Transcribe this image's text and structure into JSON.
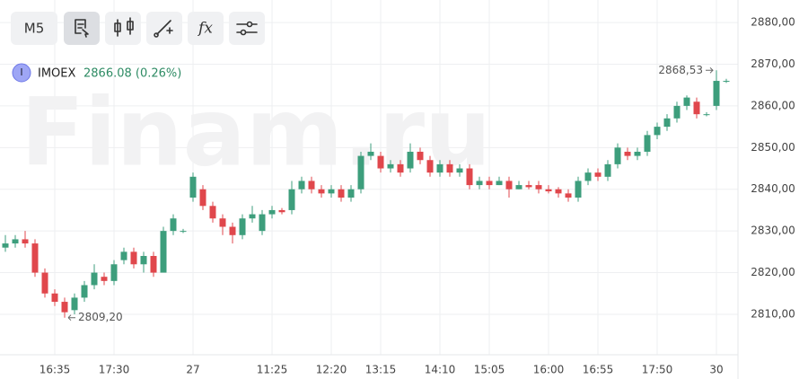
{
  "toolbar": {
    "timeframe": "M5"
  },
  "watermark": "Finam.ru",
  "legend": {
    "badge": "I",
    "ticker": "IMOEX",
    "quote": "2866.08 (0.26%)"
  },
  "chart_data": {
    "type": "candlestick",
    "categories": [
      null,
      null,
      null,
      null,
      null,
      "16:35",
      null,
      null,
      null,
      null,
      null,
      "17:30",
      null,
      null,
      null,
      null,
      null,
      null,
      null,
      "27",
      null,
      null,
      null,
      null,
      null,
      null,
      null,
      "11:25",
      null,
      null,
      null,
      null,
      null,
      "12:20",
      null,
      null,
      null,
      null,
      "13:15",
      null,
      null,
      null,
      null,
      null,
      "14:10",
      null,
      null,
      null,
      null,
      "15:05",
      null,
      null,
      null,
      null,
      null,
      "16:00",
      null,
      null,
      null,
      null,
      "16:55",
      null,
      null,
      null,
      null,
      null,
      "17:50",
      null,
      null,
      null,
      null,
      null,
      "30",
      null
    ],
    "open": [
      2826,
      2827,
      2828,
      2827,
      2820,
      2815,
      2813,
      2811,
      2814,
      2817,
      2819,
      2818,
      2823,
      2825,
      2822,
      2824,
      2820,
      2830,
      2830,
      2838,
      2840,
      2836,
      2833,
      2831,
      2829,
      2833,
      2830,
      2834,
      2835,
      2835,
      2840,
      2842,
      2840,
      2839,
      2840,
      2838,
      2840,
      2848,
      2848,
      2845,
      2846,
      2845,
      2849,
      2847,
      2844,
      2846,
      2844,
      2845,
      2841,
      2842,
      2841,
      2842,
      2840,
      2841,
      2841,
      2840,
      2840,
      2839,
      2838,
      2842,
      2844,
      2843,
      2846,
      2849,
      2848,
      2849,
      2853,
      2855,
      2857,
      2860,
      2861,
      2858,
      2860,
      2866
    ],
    "high": [
      2829,
      2829,
      2830,
      2828,
      2821,
      2816,
      2814,
      2815,
      2818,
      2822,
      2820,
      2823,
      2826,
      2826,
      2825,
      2825,
      2831,
      2834,
      2830.5,
      2844,
      2841,
      2837,
      2834,
      2832,
      2834,
      2836,
      2835,
      2836,
      2835.5,
      2842,
      2843,
      2843,
      2841,
      2841,
      2841,
      2841,
      2849,
      2851,
      2849,
      2847,
      2847,
      2851,
      2850,
      2848,
      2847,
      2847,
      2846,
      2846,
      2843,
      2843,
      2843,
      2843,
      2842,
      2842,
      2842,
      2841,
      2840.5,
      2840,
      2843,
      2845,
      2845,
      2847,
      2851,
      2850,
      2850,
      2854,
      2856,
      2858,
      2861,
      2862.5,
      2862,
      2858.5,
      2868.53,
      2866.5
    ],
    "low": [
      2825,
      2826,
      2826,
      2819,
      2814,
      2812,
      2809.2,
      2810,
      2813,
      2816,
      2817,
      2817,
      2822,
      2821,
      2820,
      2819,
      2820,
      2829,
      2829.5,
      2837,
      2835,
      2832,
      2829,
      2827,
      2828,
      2832,
      2829,
      2833,
      2834,
      2834,
      2839,
      2839,
      2838,
      2838,
      2837,
      2837,
      2839,
      2847,
      2844,
      2844,
      2843,
      2844,
      2846,
      2843,
      2843,
      2843,
      2843,
      2840,
      2840,
      2840,
      2841,
      2838,
      2840,
      2840,
      2839,
      2839,
      2838,
      2837,
      2837,
      2841,
      2842,
      2842,
      2845,
      2847,
      2847,
      2848,
      2852,
      2854,
      2856,
      2859,
      2857,
      2857.5,
      2859,
      2865.5
    ],
    "close": [
      2827,
      2828,
      2827,
      2820,
      2815,
      2813,
      2810.5,
      2814,
      2817,
      2820,
      2818,
      2822,
      2825,
      2822,
      2824,
      2820,
      2830,
      2833,
      2830,
      2843,
      2836,
      2833,
      2831,
      2829,
      2833,
      2834,
      2834,
      2835,
      2834.5,
      2840,
      2842,
      2840,
      2839,
      2840,
      2838,
      2840,
      2848,
      2849,
      2845,
      2846,
      2844,
      2849,
      2847,
      2844,
      2846,
      2844,
      2845,
      2841,
      2842,
      2841,
      2842,
      2840,
      2841,
      2840.5,
      2840,
      2839.5,
      2839,
      2838,
      2842,
      2844,
      2843,
      2846,
      2850,
      2848,
      2849,
      2853,
      2855,
      2857,
      2860,
      2862,
      2858,
      2858,
      2866,
      2866
    ],
    "up_color": "#3d9e7c",
    "down_color": "#e0474c",
    "ylim": [
      2800.3,
      2885.4
    ],
    "yticks": [
      {
        "value": 2810,
        "label": "2810,00"
      },
      {
        "value": 2820,
        "label": "2820,00"
      },
      {
        "value": 2830,
        "label": "2830,00"
      },
      {
        "value": 2840,
        "label": "2840,00"
      },
      {
        "value": 2850,
        "label": "2850,00"
      },
      {
        "value": 2860,
        "label": "2860,00"
      },
      {
        "value": 2870,
        "label": "2870,00"
      },
      {
        "value": 2880,
        "label": "2880,00"
      }
    ],
    "grid": true,
    "high_label": {
      "value": 2868.53,
      "label": "2868,53"
    },
    "low_label": {
      "value": 2809.2,
      "label": "2809,20"
    }
  }
}
